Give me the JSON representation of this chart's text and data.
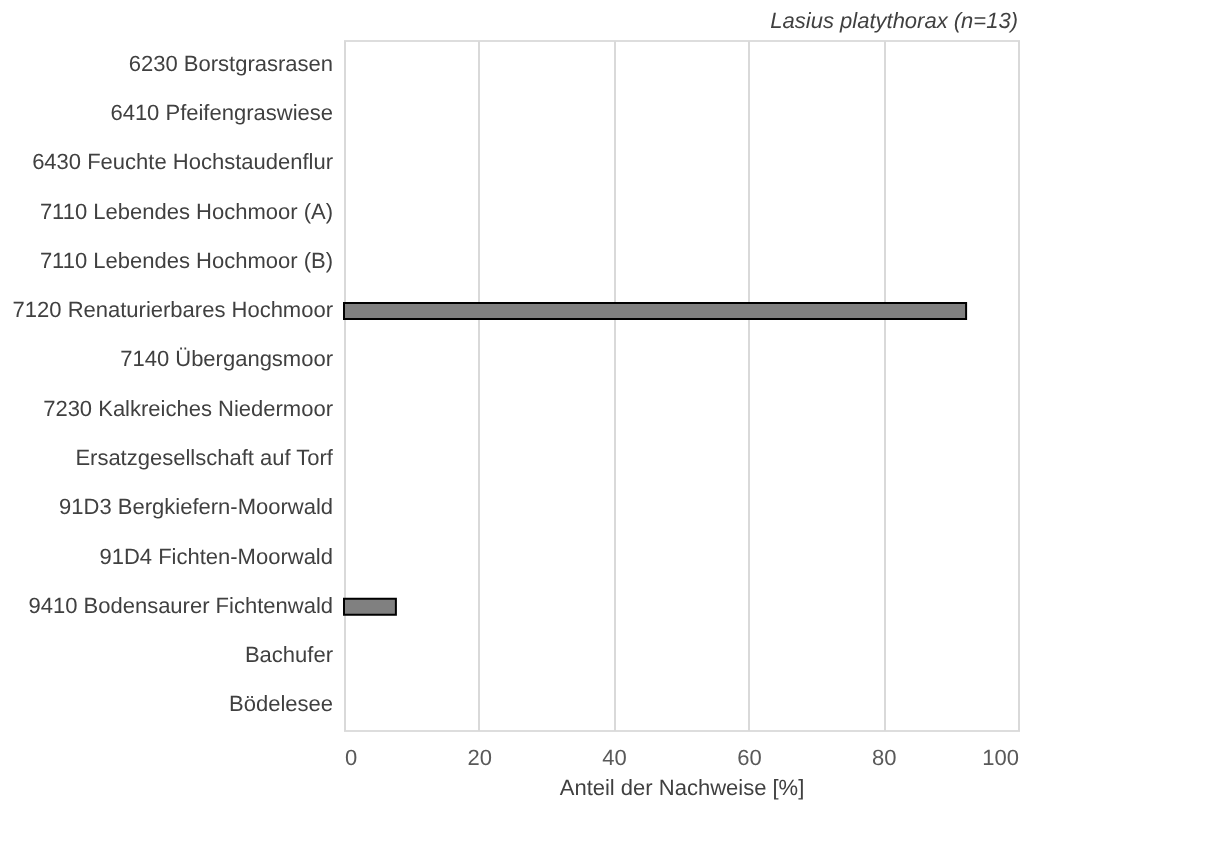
{
  "chart_data": {
    "type": "bar",
    "orientation": "horizontal",
    "title": "Lasius platythorax (n=13)",
    "xlabel": "Anteil der Nachweise [%]",
    "categories": [
      "6230 Borstgrasrasen",
      "6410 Pfeifengraswiese",
      "6430 Feuchte Hochstaudenflur",
      "7110 Lebendes Hochmoor (A)",
      "7110 Lebendes Hochmoor (B)",
      "7120 Renaturierbares Hochmoor",
      "7140 Übergangsmoor",
      "7230 Kalkreiches Niedermoor",
      "Ersatzgesellschaft auf Torf",
      "91D3 Bergkiefern-Moorwald",
      "91D4 Fichten-Moorwald",
      "9410 Bodensaurer Fichtenwald",
      "Bachufer",
      "Bödelesee"
    ],
    "values": [
      0,
      0,
      0,
      0,
      0,
      92.3,
      0,
      0,
      0,
      0,
      0,
      7.7,
      0,
      0
    ],
    "color": "#808080",
    "xlim": [
      0,
      100
    ],
    "xticks": [
      0,
      20,
      40,
      60,
      80,
      100
    ],
    "grid": "x"
  }
}
